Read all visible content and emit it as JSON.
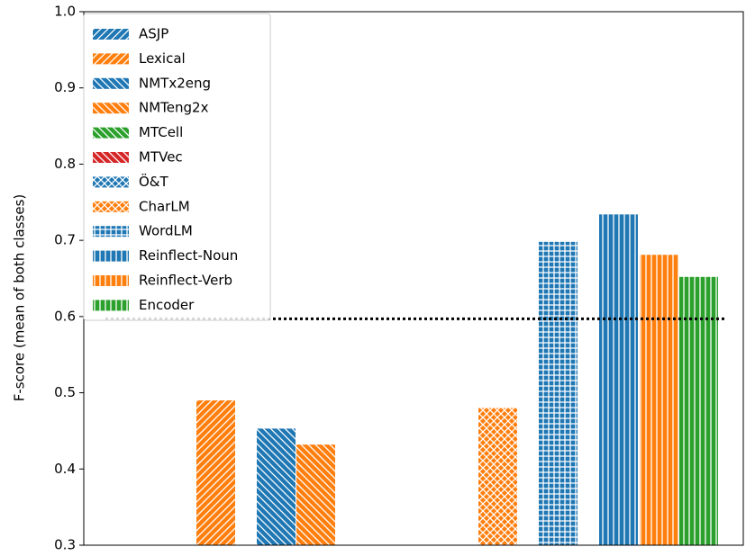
{
  "colors": {
    "blue": "#1f77b4",
    "orange": "#ff7f0e",
    "green": "#2ca02c",
    "red": "#d62728"
  },
  "chart_data": {
    "type": "bar",
    "ylabel": "F-score (mean of both classes)",
    "xlabel": "",
    "title": "",
    "ylim": [
      0.3,
      1.0
    ],
    "yticks": [
      "0.3",
      "0.4",
      "0.5",
      "0.6",
      "0.7",
      "0.8",
      "0.9",
      "1.0"
    ],
    "grid": false,
    "legend_position": "top-left",
    "reference_line": {
      "y": 0.597,
      "style": "dotted"
    },
    "series": [
      {
        "name": "ASJP",
        "color": "#1f77b4",
        "hatch": "diag-forward",
        "value": null
      },
      {
        "name": "Lexical",
        "color": "#ff7f0e",
        "hatch": "diag-forward",
        "value": 0.49
      },
      {
        "name": "NMTx2eng",
        "color": "#1f77b4",
        "hatch": "diag-back",
        "value": 0.453
      },
      {
        "name": "NMTeng2x",
        "color": "#ff7f0e",
        "hatch": "diag-back",
        "value": 0.432
      },
      {
        "name": "MTCell",
        "color": "#2ca02c",
        "hatch": "diag-back",
        "value": null
      },
      {
        "name": "MTVec",
        "color": "#d62728",
        "hatch": "diag-back",
        "value": null
      },
      {
        "name": "Ö&T",
        "color": "#1f77b4",
        "hatch": "cross",
        "value": null
      },
      {
        "name": "CharLM",
        "color": "#ff7f0e",
        "hatch": "cross",
        "value": 0.48
      },
      {
        "name": "WordLM",
        "color": "#1f77b4",
        "hatch": "grid",
        "value": 0.698
      },
      {
        "name": "Reinflect-Noun",
        "color": "#1f77b4",
        "hatch": "vertical",
        "value": 0.734
      },
      {
        "name": "Reinflect-Verb",
        "color": "#ff7f0e",
        "hatch": "vertical",
        "value": 0.681
      },
      {
        "name": "Encoder",
        "color": "#2ca02c",
        "hatch": "vertical",
        "value": 0.652
      }
    ]
  }
}
